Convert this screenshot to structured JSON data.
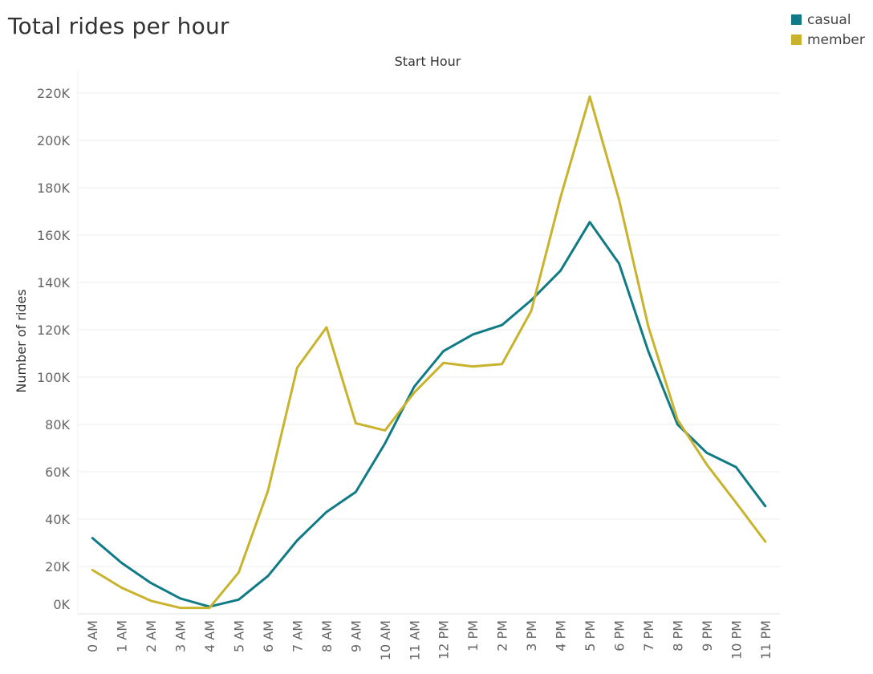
{
  "title": "Total rides per hour",
  "legend": {
    "items": [
      {
        "label": "casual",
        "color": "#107b86"
      },
      {
        "label": "member",
        "color": "#c9b32d"
      }
    ]
  },
  "chart_data": {
    "type": "line",
    "title": "Total rides per hour",
    "xlabel": "Start Hour",
    "ylabel": "Number of rides",
    "categories": [
      "0 AM",
      "1 AM",
      "2 AM",
      "3 AM",
      "4 AM",
      "5 AM",
      "6 AM",
      "7 AM",
      "8 AM",
      "9 AM",
      "10 AM",
      "11 AM",
      "12 PM",
      "1 PM",
      "2 PM",
      "3 PM",
      "4 PM",
      "5 PM",
      "6 PM",
      "7 PM",
      "8 PM",
      "9 PM",
      "10 PM",
      "11 PM"
    ],
    "series": [
      {
        "name": "casual",
        "color": "#107b86",
        "values": [
          32000,
          21500,
          13000,
          6500,
          3000,
          6000,
          16000,
          31000,
          43000,
          51500,
          72000,
          96000,
          111000,
          118000,
          122000,
          132500,
          145000,
          165500,
          148000,
          111000,
          80000,
          68000,
          62000,
          45500
        ]
      },
      {
        "name": "member",
        "color": "#c9b32d",
        "values": [
          18500,
          11000,
          5500,
          2500,
          2500,
          17500,
          52000,
          104000,
          121000,
          80500,
          77500,
          93500,
          106000,
          104500,
          105500,
          128000,
          176000,
          218500,
          175000,
          121500,
          82000,
          63000,
          47000,
          30500
        ]
      }
    ],
    "ylim": [
      0,
      220000
    ],
    "yticks": [
      "0K",
      "20K",
      "40K",
      "60K",
      "80K",
      "100K",
      "120K",
      "140K",
      "160K",
      "180K",
      "200K",
      "220K"
    ],
    "ytick_values": [
      0,
      20000,
      40000,
      60000,
      80000,
      100000,
      120000,
      140000,
      160000,
      180000,
      200000,
      220000
    ],
    "grid": true,
    "legend_position": "top-right"
  }
}
